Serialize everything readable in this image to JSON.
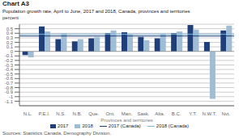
{
  "chart_data": {
    "type": "bar",
    "title": "Chart A3",
    "subtitle": "Population growth rate, April to June, 2017 and 2018, Canada, provinces and territories",
    "ylabel": "percent",
    "xlabel": "Provinces and territories",
    "source": "Sources: Statistics Canada, Demography Division.",
    "categories": [
      "N.L.",
      "P.E.I.",
      "N.S.",
      "N.B.",
      "Que.",
      "Ont.",
      "Man.",
      "Sask.",
      "Alta.",
      "B.C.",
      "Y.T.",
      "N.W.T.",
      "Nvt."
    ],
    "series": [
      {
        "name": "2017",
        "type": "bar",
        "color": "#1F3F7A",
        "values": [
          -0.08,
          0.55,
          0.27,
          0.22,
          0.29,
          0.4,
          0.42,
          0.32,
          0.29,
          0.4,
          0.58,
          0.21,
          0.46
        ]
      },
      {
        "name": "2018",
        "type": "bar",
        "color": "#A0BDD6",
        "values": [
          -0.13,
          0.44,
          0.4,
          0.27,
          0.32,
          0.46,
          0.38,
          0.25,
          0.39,
          0.44,
          0.48,
          -1.05,
          0.57
        ]
      },
      {
        "name": "2017 (Canada)",
        "type": "hline",
        "color": "#1F3F7A",
        "value": 0.34
      },
      {
        "name": "2018 (Canada)",
        "type": "hline",
        "color": "#7EB6D4",
        "value": 0.38
      }
    ],
    "ylim": [
      -1.2,
      0.6
    ],
    "yticks": [
      -1.1,
      -1.0,
      -0.9,
      -0.8,
      -0.7,
      -0.6,
      -0.5,
      -0.4,
      -0.3,
      -0.2,
      -0.1,
      0,
      0.1,
      0.2,
      0.3,
      0.4,
      0.5
    ],
    "grid": true,
    "legend": "bottom"
  }
}
